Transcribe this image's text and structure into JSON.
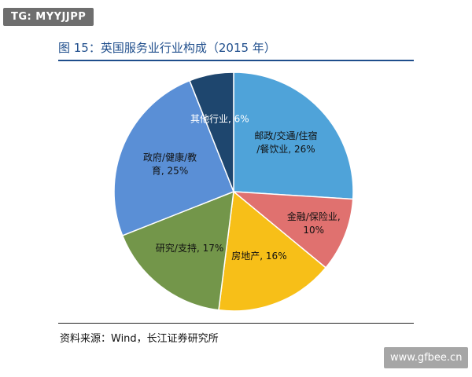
{
  "badge": {
    "text": "TG: MYYJJPP"
  },
  "figure": {
    "title": "图 15：英国服务业行业构成（2015 年）",
    "source": "资料来源：Wind，长江证券研究所"
  },
  "watermark": {
    "text": "www.gfbee.cn"
  },
  "chart_data": {
    "type": "pie",
    "title": "图 15：英国服务业行业构成（2015 年）",
    "slices": [
      {
        "name": "邮政/交通/住宿/餐饮业",
        "value": 26,
        "label_lines": [
          "邮政/交通/住宿",
          "/餐饮业, 26%"
        ],
        "color": "#4fa3d9"
      },
      {
        "name": "金融/保险业",
        "value": 10,
        "label_lines": [
          "金融/保险业,",
          "10%"
        ],
        "color": "#e0716f"
      },
      {
        "name": "房地产",
        "value": 16,
        "label_lines": [
          "房地产, 16%"
        ],
        "color": "#f7bf18"
      },
      {
        "name": "研究/支持",
        "value": 17,
        "label_lines": [
          "研究/支持, 17%"
        ],
        "color": "#73964a"
      },
      {
        "name": "政府/健康/教育",
        "value": 25,
        "label_lines": [
          "政府/健康/教",
          "育, 25%"
        ],
        "color": "#5a8fd6"
      },
      {
        "name": "其他行业",
        "value": 6,
        "label_lines": [
          "其他行业, 6%"
        ],
        "color": "#1e466e"
      }
    ]
  }
}
